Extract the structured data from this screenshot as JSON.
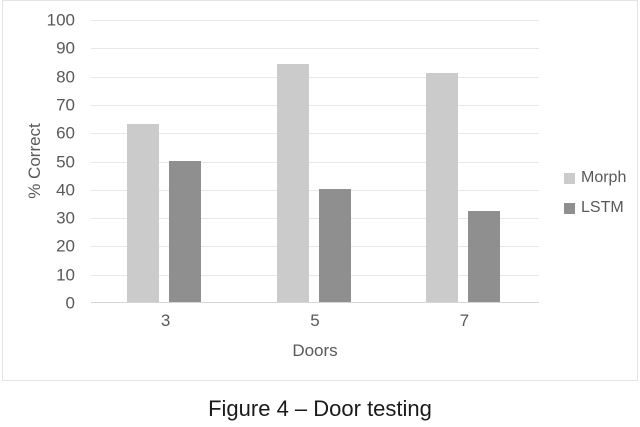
{
  "caption": "Figure 4 – Door testing",
  "palette": {
    "morph_bar": "#cbcbcb",
    "lstm_bar": "#8f8f8f",
    "gridline": "#e7e7e7",
    "axis_line": "#d5d5d5",
    "axis_text": "#595959",
    "frame_border": "#e4e4e4",
    "caption_text": "#1a1a1a"
  },
  "chart_data": {
    "type": "bar",
    "title": "",
    "categories": [
      "3",
      "5",
      "7"
    ],
    "series": [
      {
        "name": "Morph",
        "values": [
          63,
          84,
          81
        ],
        "color": "#cbcbcb"
      },
      {
        "name": "LSTM",
        "values": [
          50,
          40,
          32
        ],
        "color": "#8f8f8f"
      }
    ],
    "xlabel": "Doors",
    "ylabel": "% Correct",
    "ylim": [
      0,
      100
    ],
    "ytick_step": 10,
    "grid": true,
    "legend_position": "right"
  }
}
